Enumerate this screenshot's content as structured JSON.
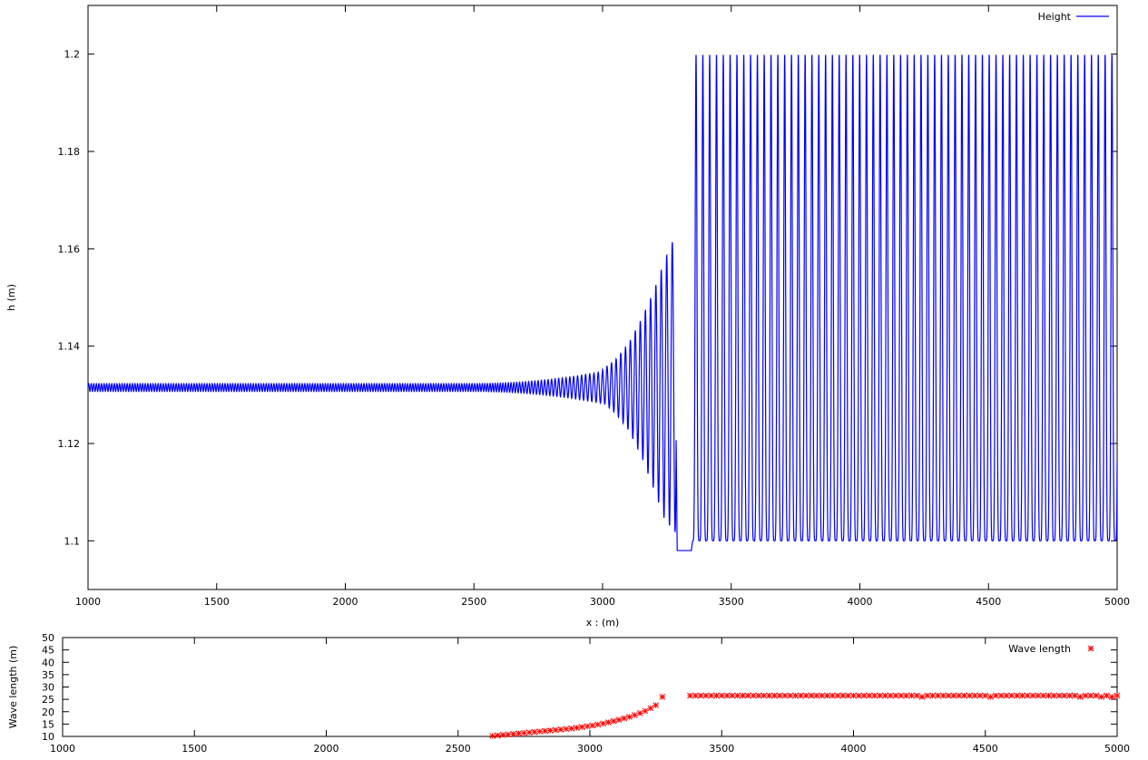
{
  "chart_data": [
    {
      "type": "line",
      "title": "",
      "xlabel": "x : (m)",
      "ylabel": "h (m)",
      "xlim": [
        1000,
        5000
      ],
      "ylim": [
        1.09,
        1.21
      ],
      "xticks": [
        1000,
        1500,
        2000,
        2500,
        3000,
        3500,
        4000,
        4500,
        5000
      ],
      "yticks": [
        1.1,
        1.12,
        1.14,
        1.16,
        1.18,
        1.2
      ],
      "ytick_labels": [
        "1.1",
        "1.12",
        "1.14",
        "1.16",
        "1.18",
        "1.2"
      ],
      "grid": false,
      "legend_position": "top-right",
      "series": [
        {
          "name": "Height",
          "color": "#0000ff",
          "description_points": {
            "baseline_mean": 1.1315,
            "growing_region_start": 2500,
            "trough_flat": [
              1.098,
              3290,
              3345
            ],
            "saturated_range": [
              1.1,
              1.2
            ],
            "saturated_start": 3350
          },
          "growing_peaks": [
            [
              3000,
              1.1352,
              1.1285
            ],
            [
              3050,
              1.1372,
              1.1262
            ],
            [
              3100,
              1.1405,
              1.1228
            ],
            [
              3150,
              1.1455,
              1.1175
            ],
            [
              3200,
              1.1515,
              1.1105
            ],
            [
              3240,
              1.1575,
              1.1045
            ],
            [
              3280,
              1.1625,
              1.1018
            ]
          ],
          "saturated_wavelength": 26.5
        }
      ]
    },
    {
      "type": "scatter",
      "title": "",
      "xlabel": "",
      "ylabel": "Wave length (m)",
      "xlim": [
        1000,
        5000
      ],
      "ylim": [
        10,
        50
      ],
      "xticks": [
        1000,
        1500,
        2000,
        2500,
        3000,
        3500,
        4000,
        4500,
        5000
      ],
      "yticks": [
        10,
        15,
        20,
        25,
        30,
        35,
        40,
        45,
        50
      ],
      "ytick_labels": [
        "10",
        "15",
        "20",
        "25",
        "30",
        "35",
        "40",
        "45",
        "50"
      ],
      "grid": false,
      "legend_position": "top-right",
      "series": [
        {
          "name": "Wave length",
          "color": "#ff0000",
          "marker": "star",
          "x": [
            2630,
            2650,
            2670,
            2690,
            2710,
            2730,
            2750,
            2770,
            2790,
            2810,
            2830,
            2850,
            2870,
            2890,
            2910,
            2930,
            2950,
            2970,
            2990,
            3010,
            3030,
            3050,
            3070,
            3090,
            3110,
            3130,
            3150,
            3170,
            3190,
            3210,
            3230,
            3250,
            3275,
            3380,
            3400,
            3420,
            3440,
            3460,
            3480,
            3500,
            3520,
            3540,
            3560,
            3580,
            3600,
            3620,
            3640,
            3660,
            3680,
            3700,
            3720,
            3740,
            3760,
            3780,
            3800,
            3820,
            3840,
            3860,
            3880,
            3900,
            3920,
            3940,
            3960,
            3980,
            4000,
            4020,
            4040,
            4060,
            4080,
            4100,
            4120,
            4140,
            4160,
            4180,
            4200,
            4220,
            4240,
            4260,
            4280,
            4300,
            4320,
            4340,
            4360,
            4380,
            4400,
            4420,
            4440,
            4460,
            4480,
            4500,
            4520,
            4540,
            4560,
            4580,
            4600,
            4620,
            4640,
            4660,
            4680,
            4700,
            4720,
            4740,
            4760,
            4780,
            4800,
            4820,
            4840,
            4860,
            4880,
            4900,
            4920,
            4940,
            4960,
            4980,
            5000
          ],
          "y": [
            10.2,
            10.4,
            10.6,
            10.8,
            11.0,
            11.2,
            11.4,
            11.6,
            11.8,
            12.0,
            12.2,
            12.4,
            12.6,
            12.8,
            13.0,
            13.2,
            13.5,
            13.8,
            14.1,
            14.4,
            14.8,
            15.2,
            15.7,
            16.2,
            16.7,
            17.3,
            17.9,
            18.6,
            19.4,
            20.3,
            21.4,
            22.6,
            26.0,
            26.5,
            26.5,
            26.5,
            26.5,
            26.5,
            26.5,
            26.5,
            26.5,
            26.5,
            26.5,
            26.5,
            26.5,
            26.5,
            26.5,
            26.5,
            26.5,
            26.5,
            26.5,
            26.5,
            26.5,
            26.5,
            26.5,
            26.5,
            26.5,
            26.5,
            26.5,
            26.5,
            26.5,
            26.5,
            26.5,
            26.5,
            26.5,
            26.5,
            26.5,
            26.5,
            26.5,
            26.5,
            26.5,
            26.5,
            26.5,
            26.5,
            26.5,
            26.5,
            26.5,
            26.0,
            26.5,
            26.5,
            26.5,
            26.5,
            26.5,
            26.5,
            26.5,
            26.5,
            26.5,
            26.5,
            26.5,
            26.5,
            26.0,
            26.5,
            26.5,
            26.5,
            26.5,
            26.5,
            26.5,
            26.5,
            26.5,
            26.5,
            26.5,
            26.5,
            26.5,
            26.5,
            26.5,
            26.5,
            26.5,
            26.0,
            26.5,
            26.5,
            26.5,
            26.0,
            26.5,
            26.0,
            26.5
          ]
        }
      ]
    }
  ]
}
